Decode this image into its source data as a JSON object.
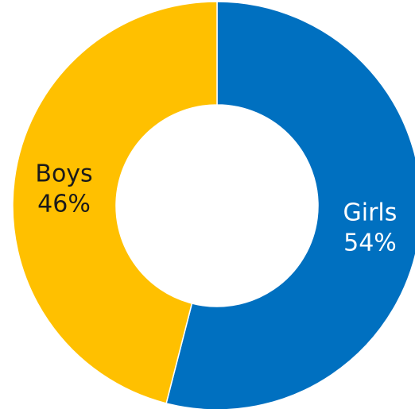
{
  "chart_data": {
    "type": "pie",
    "variant": "donut",
    "title": "",
    "categories": [
      "Girls",
      "Boys"
    ],
    "values": [
      54,
      46
    ],
    "value_labels": [
      "54%",
      "46%"
    ],
    "colors": [
      "#0070C0",
      "#FFC000"
    ],
    "label_colors": [
      "#ffffff",
      "#1a1a1a"
    ],
    "start": "12 o'clock",
    "direction": "clockwise",
    "legend": "none"
  }
}
